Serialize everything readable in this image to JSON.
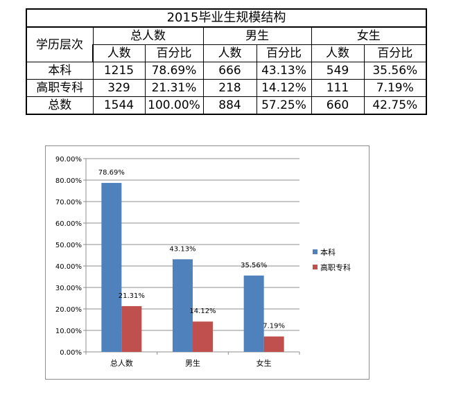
{
  "table": {
    "title": "2015毕业生规模结构",
    "row_header_label": "学历层次",
    "group_headers": [
      "总人数",
      "男生",
      "女生"
    ],
    "sub_headers": [
      "人数",
      "百分比",
      "人数",
      "百分比",
      "人数",
      "百分比"
    ],
    "rows": [
      {
        "label": "本科",
        "cells": [
          "1215",
          "78.69%",
          "666",
          "43.13%",
          "549",
          "35.56%"
        ]
      },
      {
        "label": "高职专科",
        "cells": [
          "329",
          "21.31%",
          "218",
          "14.12%",
          "111",
          "7.19%"
        ]
      },
      {
        "label": "总数",
        "cells": [
          "1544",
          "100.00%",
          "884",
          "57.25%",
          "660",
          "42.75%"
        ]
      }
    ]
  },
  "chart_data": {
    "type": "bar",
    "categories": [
      "总人数",
      "男生",
      "女生"
    ],
    "series": [
      {
        "name": "本科",
        "values": [
          78.69,
          43.13,
          35.56
        ],
        "labels": [
          "78.69%",
          "43.13%",
          "35.56%"
        ],
        "color": "#4f81bd"
      },
      {
        "name": "高职专科",
        "values": [
          21.31,
          14.12,
          7.19
        ],
        "labels": [
          "21.31%",
          "14.12%",
          "7.19%"
        ],
        "color": "#c0504d"
      }
    ],
    "ylim": [
      0,
      90
    ],
    "yticks": [
      "0.00%",
      "10.00%",
      "20.00%",
      "30.00%",
      "40.00%",
      "50.00%",
      "60.00%",
      "70.00%",
      "80.00%",
      "90.00%"
    ],
    "grid": true,
    "legend_position": "right"
  }
}
